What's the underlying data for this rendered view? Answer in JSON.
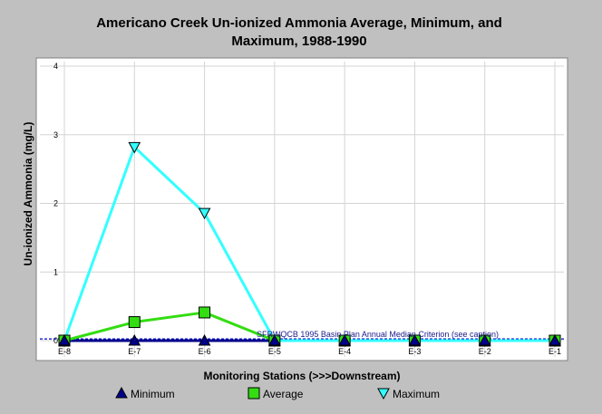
{
  "chart_data": {
    "type": "line",
    "title_lines": [
      "Americano Creek Un-ionized Ammonia Average, Minimum, and",
      "Maximum, 1988-1990"
    ],
    "xlabel": "Monitoring Stations (>>>Downstream)",
    "ylabel": "Un-ionized Ammonia (mg/L)",
    "categories": [
      "E-8",
      "E-7",
      "E-6",
      "E-5",
      "E-4",
      "E-3",
      "E-2",
      "E-1"
    ],
    "ylim": [
      0,
      4
    ],
    "yticks": [
      "0",
      "1",
      "2",
      "3",
      "4"
    ],
    "grid": true,
    "legend_position": "bottom",
    "series": [
      {
        "name": "Minimum",
        "values": [
          0,
          0,
          0,
          0,
          0,
          0,
          0,
          0
        ],
        "color": "#00008b",
        "marker": "triangle-up"
      },
      {
        "name": "Average",
        "values": [
          0,
          0.27,
          0.41,
          0,
          0,
          0,
          0,
          0
        ],
        "color": "#33dd11",
        "marker": "square"
      },
      {
        "name": "Maximum",
        "values": [
          0,
          2.82,
          1.86,
          0,
          0,
          0,
          0,
          0
        ],
        "color": "#33ffff",
        "marker": "triangle-down"
      }
    ],
    "annotation": "SFRWQCB 1995 Basin Plan Annual Median Criterion (see caption)",
    "criterion_value": 0.025,
    "criterion_color": "#0000cc"
  }
}
